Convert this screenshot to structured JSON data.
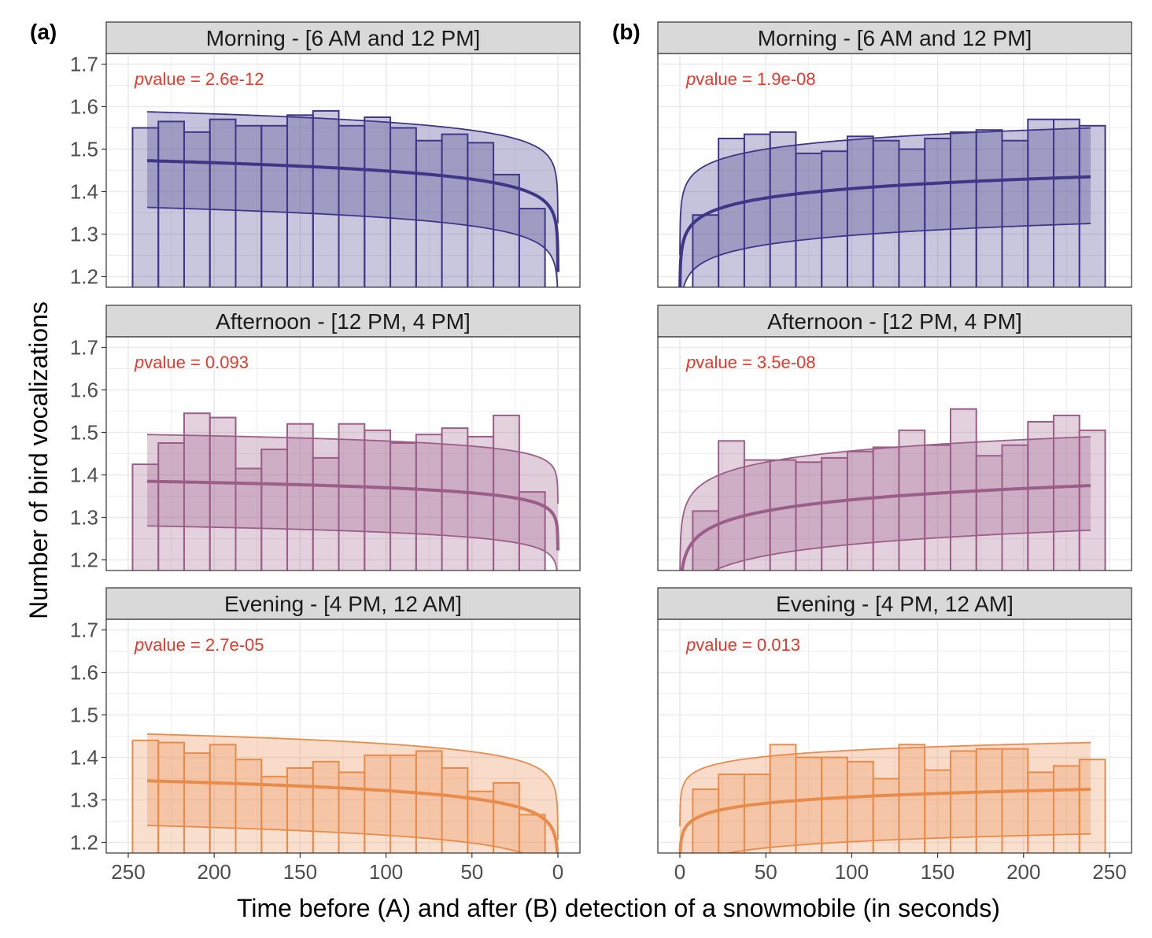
{
  "figure": {
    "ylabel": "Number of bird vocalizations",
    "xlabel": "Time before (A) and after (B) detection of a snowmobile (in seconds)",
    "pvalue_prefix": "p",
    "pvalue_label": "value = ",
    "pvalue_color": "#e8382b"
  },
  "chart_data": [
    {
      "type": "bar",
      "panel": "(a)",
      "x_reversed": true,
      "xlim": [
        0,
        250
      ],
      "xticks": [
        250,
        200,
        150,
        100,
        50,
        0
      ],
      "ylim": [
        1.2,
        1.7
      ],
      "yticks": [
        1.2,
        1.3,
        1.4,
        1.5,
        1.6,
        1.7
      ],
      "grid": true,
      "facets": [
        {
          "strip": "Morning - [6 AM and 12 PM]",
          "pvalue": "2.6e-12",
          "color": "#3e3788",
          "x": [
            240,
            225,
            210,
            195,
            180,
            165,
            150,
            135,
            120,
            105,
            90,
            75,
            60,
            45,
            30,
            15
          ],
          "values": [
            1.55,
            1.565,
            1.54,
            1.57,
            1.555,
            1.555,
            1.58,
            1.59,
            1.555,
            1.575,
            1.55,
            1.52,
            1.535,
            1.515,
            1.44,
            1.36
          ],
          "fit": {
            "type": "log",
            "at_240": 1.473,
            "at_1": 1.32,
            "lower_offset": 0.11,
            "upper_offset": 0.115
          }
        },
        {
          "strip": "Afternoon - [12 PM, 4 PM]",
          "pvalue": "0.093",
          "color": "#9b5e88",
          "x": [
            240,
            225,
            210,
            195,
            180,
            165,
            150,
            135,
            120,
            105,
            90,
            75,
            60,
            45,
            30,
            15
          ],
          "values": [
            1.425,
            1.475,
            1.545,
            1.535,
            1.415,
            1.46,
            1.52,
            1.44,
            1.52,
            1.505,
            1.475,
            1.495,
            1.51,
            1.49,
            1.54,
            1.36
          ],
          "fit": {
            "type": "log",
            "at_240": 1.385,
            "at_1": 1.29,
            "lower_offset": 0.105,
            "upper_offset": 0.11
          }
        },
        {
          "strip": "Evening - [4 PM, 12 AM]",
          "pvalue": "2.7e-05",
          "color": "#e88b4b",
          "x": [
            240,
            225,
            210,
            195,
            180,
            165,
            150,
            135,
            120,
            105,
            90,
            75,
            60,
            45,
            30,
            15
          ],
          "values": [
            1.44,
            1.435,
            1.41,
            1.43,
            1.395,
            1.355,
            1.375,
            1.39,
            1.365,
            1.405,
            1.405,
            1.415,
            1.375,
            1.32,
            1.34,
            1.265
          ],
          "fit": {
            "type": "log",
            "at_240": 1.345,
            "at_1": 1.2,
            "lower_offset": 0.105,
            "upper_offset": 0.11
          }
        }
      ]
    },
    {
      "type": "bar",
      "panel": "(b)",
      "x_reversed": false,
      "xlim": [
        0,
        250
      ],
      "xticks": [
        0,
        50,
        100,
        150,
        200,
        250
      ],
      "ylim": [
        1.2,
        1.7
      ],
      "yticks": [
        1.2,
        1.3,
        1.4,
        1.5,
        1.6,
        1.7
      ],
      "grid": true,
      "facets": [
        {
          "strip": "Morning - [6 AM and 12 PM]",
          "pvalue": "1.9e-08",
          "color": "#3e3788",
          "x": [
            15,
            30,
            45,
            60,
            75,
            90,
            105,
            120,
            135,
            150,
            165,
            180,
            195,
            210,
            225,
            240
          ],
          "values": [
            1.345,
            1.525,
            1.535,
            1.54,
            1.49,
            1.495,
            1.53,
            1.52,
            1.5,
            1.525,
            1.54,
            1.545,
            1.52,
            1.57,
            1.57,
            1.555
          ],
          "fit": {
            "type": "log",
            "at_240": 1.435,
            "at_1": 1.26,
            "lower_offset": 0.11,
            "upper_offset": 0.115
          }
        },
        {
          "strip": "Afternoon - [12 PM, 4 PM]",
          "pvalue": "3.5e-08",
          "color": "#9b5e88",
          "x": [
            15,
            30,
            45,
            60,
            75,
            90,
            105,
            120,
            135,
            150,
            165,
            180,
            195,
            210,
            225,
            240
          ],
          "values": [
            1.315,
            1.48,
            1.435,
            1.435,
            1.43,
            1.44,
            1.455,
            1.465,
            1.505,
            1.47,
            1.555,
            1.445,
            1.47,
            1.525,
            1.54,
            1.505
          ],
          "fit": {
            "type": "log",
            "at_240": 1.375,
            "at_1": 1.165,
            "lower_offset": 0.105,
            "upper_offset": 0.115
          }
        },
        {
          "strip": "Evening - [4 PM, 12 AM]",
          "pvalue": "0.013",
          "color": "#e88b4b",
          "x": [
            15,
            30,
            45,
            60,
            75,
            90,
            105,
            120,
            135,
            150,
            165,
            180,
            195,
            210,
            225,
            240
          ],
          "values": [
            1.325,
            1.36,
            1.36,
            1.43,
            1.4,
            1.4,
            1.39,
            1.35,
            1.43,
            1.37,
            1.415,
            1.42,
            1.42,
            1.365,
            1.38,
            1.395
          ],
          "fit": {
            "type": "log",
            "at_240": 1.325,
            "at_1": 1.21,
            "lower_offset": 0.105,
            "upper_offset": 0.11
          }
        }
      ]
    }
  ]
}
